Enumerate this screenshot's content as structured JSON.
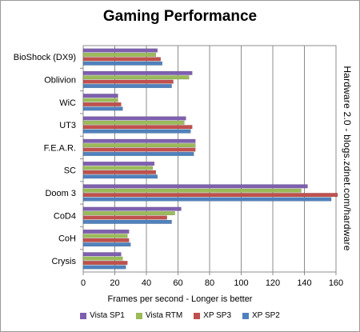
{
  "chart_data": {
    "type": "bar",
    "orientation": "horizontal",
    "title": "Gaming Performance",
    "xlabel": "Frames per second - Longer is better",
    "side_note": "Hardware 2.0 - blogs.zdnet.com/hardware",
    "xlim": [
      0,
      160
    ],
    "xticks": [
      "0",
      "20",
      "40",
      "60",
      "80",
      "100",
      "120",
      "140",
      "160"
    ],
    "grid": true,
    "legend_position": "bottom",
    "categories": [
      "BioShock (DX9)",
      "Oblivion",
      "WiC",
      "UT3",
      "F.E.A.R.",
      "SC",
      "Doom 3",
      "CoD4",
      "CoH",
      "Crysis"
    ],
    "series": [
      {
        "name": "Vista SP1",
        "color": "#7e5faf",
        "values": [
          47,
          69,
          22,
          65,
          71,
          45,
          142,
          62,
          29,
          24
        ]
      },
      {
        "name": "Vista RTM",
        "color": "#9bbb59",
        "values": [
          46,
          67,
          22,
          64,
          71,
          44,
          138,
          58,
          28,
          25
        ]
      },
      {
        "name": "XP SP3",
        "color": "#c0504d",
        "values": [
          49,
          57,
          24,
          69,
          71,
          46,
          161,
          53,
          29,
          28
        ]
      },
      {
        "name": "XP SP2",
        "color": "#4f81bd",
        "values": [
          50,
          56,
          25,
          68,
          70,
          47,
          157,
          56,
          30,
          27
        ]
      }
    ]
  }
}
